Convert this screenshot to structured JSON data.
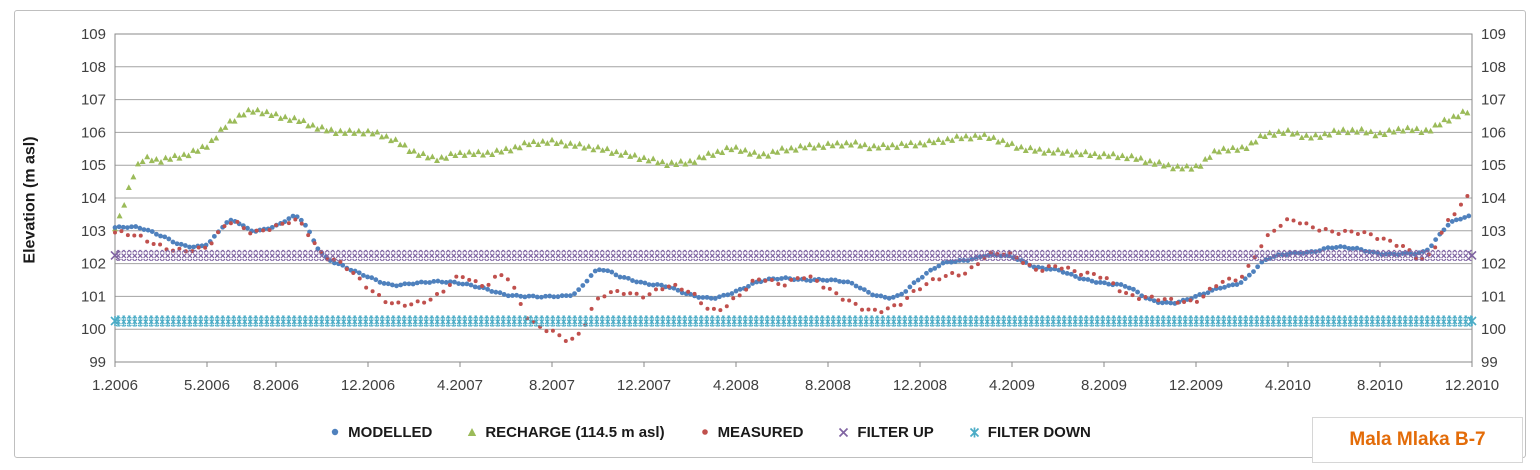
{
  "station_label": "Mala Mlaka B-7",
  "chart_data": {
    "type": "scatter",
    "title": "",
    "ylabel": "Elevation (m asl)",
    "ylim": [
      99,
      109
    ],
    "grid": true,
    "legend_position": "bottom",
    "yticks": [
      "99",
      "100",
      "101",
      "102",
      "103",
      "104",
      "105",
      "106",
      "107",
      "108",
      "109"
    ],
    "x_ticks": [
      {
        "month": 0,
        "label": "1.2006"
      },
      {
        "month": 4,
        "label": "5.2006"
      },
      {
        "month": 7,
        "label": "8.2006"
      },
      {
        "month": 11,
        "label": "12.2006"
      },
      {
        "month": 15,
        "label": "4.2007"
      },
      {
        "month": 19,
        "label": "8.2007"
      },
      {
        "month": 23,
        "label": "12.2007"
      },
      {
        "month": 27,
        "label": "4.2008"
      },
      {
        "month": 31,
        "label": "8.2008"
      },
      {
        "month": 35,
        "label": "12.2008"
      },
      {
        "month": 39,
        "label": "4.2009"
      },
      {
        "month": 43,
        "label": "8.2009"
      },
      {
        "month": 47,
        "label": "12.2009"
      },
      {
        "month": 51,
        "label": "4.2010"
      },
      {
        "month": 55,
        "label": "8.2010"
      },
      {
        "month": 59,
        "label": "12.2010"
      }
    ],
    "months_span": 59,
    "x_start_label": "1.2006",
    "x_end_label": "12.2010",
    "series": [
      {
        "name": "MODELLED",
        "color": "#4f81bd",
        "marker": "circle",
        "monthly_values": [
          103.1,
          103.1,
          102.85,
          102.55,
          102.6,
          103.3,
          103.0,
          103.15,
          103.4,
          102.3,
          101.9,
          101.6,
          101.35,
          101.4,
          101.45,
          101.4,
          101.25,
          101.05,
          101.0,
          101.0,
          101.1,
          101.8,
          101.6,
          101.4,
          101.3,
          101.05,
          100.95,
          101.15,
          101.45,
          101.55,
          101.5,
          101.5,
          101.4,
          101.05,
          101.0,
          101.55,
          102.0,
          102.1,
          102.25,
          102.2,
          101.9,
          101.8,
          101.55,
          101.4,
          101.3,
          100.9,
          100.8,
          101.0,
          101.25,
          101.45,
          102.1,
          102.3,
          102.35,
          102.5,
          102.45,
          102.3,
          102.3,
          102.4,
          103.2,
          103.45
        ]
      },
      {
        "name": "RECHARGE (114.5 m asl)",
        "color": "#9bbb59",
        "marker": "triangle",
        "monthly_values": [
          103.1,
          105.0,
          105.15,
          105.3,
          105.6,
          106.3,
          106.65,
          106.5,
          106.35,
          106.1,
          106.0,
          106.0,
          105.8,
          105.4,
          105.2,
          105.35,
          105.35,
          105.45,
          105.65,
          105.7,
          105.6,
          105.5,
          105.35,
          105.2,
          105.05,
          105.1,
          105.35,
          105.5,
          105.3,
          105.45,
          105.55,
          105.6,
          105.65,
          105.55,
          105.6,
          105.65,
          105.75,
          105.85,
          105.85,
          105.6,
          105.45,
          105.4,
          105.35,
          105.3,
          105.25,
          105.1,
          104.95,
          104.95,
          105.45,
          105.5,
          105.9,
          106.0,
          105.85,
          106.0,
          106.05,
          105.95,
          106.1,
          106.05,
          106.4,
          106.65
        ]
      },
      {
        "name": "MEASURED",
        "color": "#c0504d",
        "marker": "circle",
        "monthly_values": [
          102.95,
          102.8,
          102.55,
          102.4,
          102.5,
          103.3,
          102.95,
          103.1,
          103.3,
          102.3,
          101.9,
          101.3,
          100.8,
          100.75,
          101.05,
          101.6,
          101.3,
          101.65,
          100.3,
          99.9,
          99.75,
          100.9,
          101.1,
          101.05,
          101.3,
          101.1,
          100.6,
          100.95,
          101.5,
          101.4,
          101.6,
          101.2,
          100.85,
          100.55,
          100.7,
          101.3,
          101.6,
          101.7,
          102.3,
          102.25,
          101.8,
          101.95,
          101.7,
          101.55,
          101.1,
          100.95,
          100.85,
          100.9,
          101.4,
          101.6,
          102.75,
          103.3,
          103.1,
          103.0,
          102.95,
          102.75,
          102.55,
          102.15,
          103.3,
          104.15
        ]
      },
      {
        "name": "FILTER UP",
        "color": "#8064a2",
        "marker": "x-cross",
        "constant_value": 102.25
      },
      {
        "name": "FILTER DOWN",
        "color": "#4bacc6",
        "marker": "star-cross",
        "constant_value": 100.25
      }
    ]
  }
}
